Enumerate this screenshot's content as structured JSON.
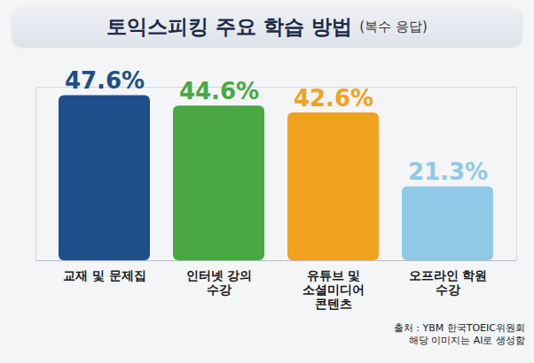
{
  "chart_data": {
    "type": "bar",
    "title": "토익스피킹 주요 학습 방법",
    "subtitle": "(복수 응답)",
    "categories": [
      "교재 및 문제집",
      "인터넷 강의 수강",
      "유튜브 및 소셜미디어 콘텐츠",
      "오프라인 학원 수강"
    ],
    "values": [
      47.6,
      44.6,
      42.6,
      21.3
    ],
    "value_labels": [
      "47.6%",
      "44.6%",
      "42.6%",
      "21.3%"
    ],
    "colors": [
      "#1d4f8a",
      "#4aa843",
      "#f0a21f",
      "#8fc9e6"
    ],
    "ylim": [
      0,
      50
    ],
    "data_labels": true,
    "tick_labels": "x",
    "source": "출처 : YBM 한국TOEIC위원회",
    "note": "해당 이미지는 AI로 생성함"
  }
}
